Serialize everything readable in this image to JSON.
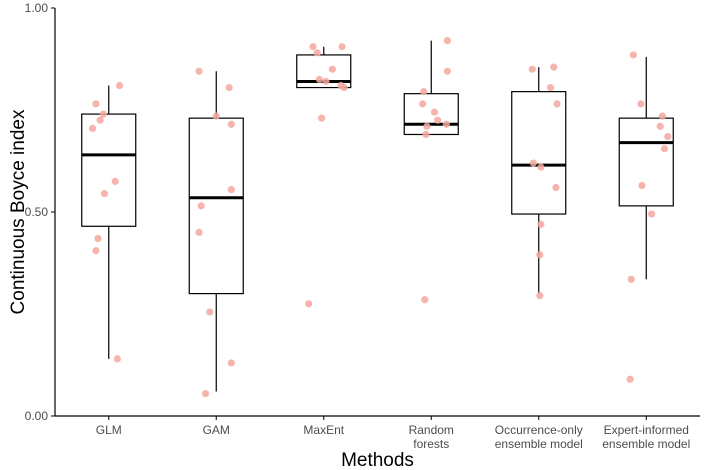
{
  "chart_data": {
    "type": "boxplot",
    "xlabel": "Methods",
    "ylabel": "Continuous Boyce index",
    "ylim": [
      0,
      1
    ],
    "yticks": [
      0.0,
      0.5,
      1.0
    ],
    "ytick_labels": [
      "0.00",
      "0.50",
      "1.00"
    ],
    "grid": false,
    "legend": "none",
    "colors": {
      "box_outline": "#000000",
      "median": "#000000",
      "points": "#f4a89d",
      "axis": "#000000"
    },
    "categories": [
      {
        "lines": [
          "GLM"
        ],
        "box": {
          "whisker_low": 0.14,
          "q1": 0.465,
          "median": 0.64,
          "q3": 0.74,
          "whisker_high": 0.81
        },
        "points": [
          [
            0.1,
            0.81
          ],
          [
            -0.12,
            0.765
          ],
          [
            -0.05,
            0.74
          ],
          [
            -0.08,
            0.725
          ],
          [
            -0.15,
            0.705
          ],
          [
            0.06,
            0.575
          ],
          [
            -0.04,
            0.545
          ],
          [
            -0.1,
            0.435
          ],
          [
            -0.12,
            0.405
          ],
          [
            0.08,
            0.14
          ]
        ]
      },
      {
        "lines": [
          "GAM"
        ],
        "box": {
          "whisker_low": 0.06,
          "q1": 0.3,
          "median": 0.535,
          "q3": 0.73,
          "whisker_high": 0.845
        },
        "points": [
          [
            -0.16,
            0.845
          ],
          [
            0.12,
            0.805
          ],
          [
            0.0,
            0.735
          ],
          [
            0.14,
            0.715
          ],
          [
            0.14,
            0.555
          ],
          [
            -0.14,
            0.515
          ],
          [
            -0.16,
            0.45
          ],
          [
            -0.06,
            0.255
          ],
          [
            0.14,
            0.13
          ],
          [
            -0.1,
            0.055
          ]
        ]
      },
      {
        "lines": [
          "MaxEnt"
        ],
        "box": {
          "whisker_low": 0.805,
          "q1": 0.805,
          "median": 0.82,
          "q3": 0.885,
          "whisker_high": 0.905
        },
        "points": [
          [
            -0.1,
            0.905
          ],
          [
            0.17,
            0.905
          ],
          [
            -0.06,
            0.89
          ],
          [
            0.08,
            0.85
          ],
          [
            -0.04,
            0.825
          ],
          [
            0.02,
            0.82
          ],
          [
            0.16,
            0.81
          ],
          [
            0.19,
            0.805
          ],
          [
            -0.02,
            0.73
          ],
          [
            -0.14,
            0.275
          ]
        ]
      },
      {
        "lines": [
          "Random",
          "forests"
        ],
        "box": {
          "whisker_low": 0.69,
          "q1": 0.69,
          "median": 0.715,
          "q3": 0.79,
          "whisker_high": 0.92
        },
        "points": [
          [
            0.15,
            0.92
          ],
          [
            0.15,
            0.845
          ],
          [
            -0.07,
            0.795
          ],
          [
            -0.08,
            0.765
          ],
          [
            0.03,
            0.745
          ],
          [
            0.06,
            0.725
          ],
          [
            0.14,
            0.715
          ],
          [
            -0.04,
            0.71
          ],
          [
            -0.05,
            0.69
          ],
          [
            -0.06,
            0.285
          ]
        ]
      },
      {
        "lines": [
          "Occurrence-only",
          "ensemble model"
        ],
        "box": {
          "whisker_low": 0.3,
          "q1": 0.495,
          "median": 0.615,
          "q3": 0.795,
          "whisker_high": 0.855
        },
        "points": [
          [
            -0.06,
            0.85
          ],
          [
            0.14,
            0.855
          ],
          [
            0.11,
            0.805
          ],
          [
            0.17,
            0.765
          ],
          [
            -0.05,
            0.62
          ],
          [
            0.02,
            0.61
          ],
          [
            0.16,
            0.56
          ],
          [
            0.02,
            0.47
          ],
          [
            0.01,
            0.395
          ],
          [
            0.01,
            0.295
          ]
        ]
      },
      {
        "lines": [
          "Expert-informed",
          "ensemble model"
        ],
        "box": {
          "whisker_low": 0.335,
          "q1": 0.515,
          "median": 0.67,
          "q3": 0.73,
          "whisker_high": 0.88
        },
        "points": [
          [
            -0.12,
            0.885
          ],
          [
            -0.05,
            0.765
          ],
          [
            0.15,
            0.735
          ],
          [
            0.13,
            0.71
          ],
          [
            0.2,
            0.685
          ],
          [
            0.17,
            0.655
          ],
          [
            -0.04,
            0.565
          ],
          [
            0.05,
            0.495
          ],
          [
            -0.14,
            0.335
          ],
          [
            -0.15,
            0.09
          ]
        ]
      }
    ]
  }
}
